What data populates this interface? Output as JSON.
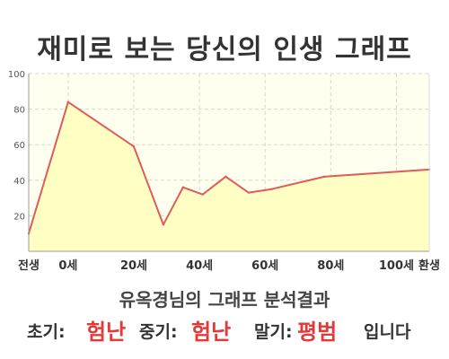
{
  "title": "재미로 보는 당신의 인생 그래프",
  "chart_data": {
    "type": "area",
    "x": [
      "전생",
      "0세",
      "20세",
      "40세",
      "60세",
      "80세",
      "100세",
      "환생"
    ],
    "points": [
      {
        "x": -12,
        "y": 10
      },
      {
        "x": 0,
        "y": 84
      },
      {
        "x": 20,
        "y": 59
      },
      {
        "x": 29,
        "y": 15
      },
      {
        "x": 35,
        "y": 36
      },
      {
        "x": 41,
        "y": 32
      },
      {
        "x": 48,
        "y": 42
      },
      {
        "x": 55,
        "y": 33
      },
      {
        "x": 62,
        "y": 35
      },
      {
        "x": 78,
        "y": 42
      },
      {
        "x": 110,
        "y": 46
      }
    ],
    "x_ticks": [
      {
        "x": -12,
        "label": "전생"
      },
      {
        "x": 0,
        "label": "0세"
      },
      {
        "x": 20,
        "label": "20세"
      },
      {
        "x": 40,
        "label": "40세"
      },
      {
        "x": 60,
        "label": "60세"
      },
      {
        "x": 80,
        "label": "80세"
      },
      {
        "x": 100,
        "label": "100세"
      },
      {
        "x": 110,
        "label": "환생"
      }
    ],
    "xlim": [
      -12,
      110
    ],
    "ylim": [
      0,
      100
    ],
    "y_ticks": [
      20,
      40,
      60,
      80,
      100
    ],
    "grid": true,
    "colors": {
      "line": "#e05a5a",
      "fill": "#ffffc4",
      "grid": "#d8d8c8",
      "axis": "#999999"
    }
  },
  "result": {
    "heading": "유옥경님의 그래프 분석결과",
    "early_label": "초기:",
    "early_value": "험난",
    "mid_label": "중기:",
    "mid_value": "험난",
    "late_label": "말기:",
    "late_value": "평범",
    "suffix": "입니다"
  }
}
